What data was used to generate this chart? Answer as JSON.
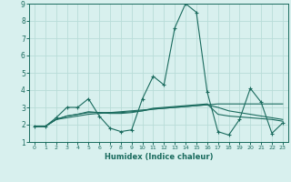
{
  "xlabel": "Humidex (Indice chaleur)",
  "x_values": [
    0,
    1,
    2,
    3,
    4,
    5,
    6,
    7,
    8,
    9,
    10,
    11,
    12,
    13,
    14,
    15,
    16,
    17,
    18,
    19,
    20,
    21,
    22,
    23
  ],
  "series": [
    [
      1.9,
      1.9,
      2.4,
      3.0,
      3.0,
      3.5,
      2.5,
      1.8,
      1.6,
      1.7,
      3.5,
      4.8,
      4.3,
      7.6,
      9.0,
      8.5,
      3.9,
      1.6,
      1.4,
      2.3,
      4.1,
      3.3,
      1.5,
      2.1
    ],
    [
      1.9,
      1.9,
      2.3,
      2.4,
      2.5,
      2.6,
      2.65,
      2.7,
      2.75,
      2.8,
      2.85,
      2.9,
      2.95,
      3.0,
      3.05,
      3.1,
      3.15,
      3.2,
      3.2,
      3.2,
      3.2,
      3.2,
      3.2,
      3.2
    ],
    [
      1.9,
      1.9,
      2.3,
      2.5,
      2.6,
      2.7,
      2.7,
      2.7,
      2.7,
      2.75,
      2.8,
      2.9,
      2.95,
      3.0,
      3.05,
      3.1,
      3.15,
      3.0,
      2.8,
      2.7,
      2.6,
      2.5,
      2.4,
      2.3
    ],
    [
      1.9,
      1.9,
      2.3,
      2.5,
      2.6,
      2.75,
      2.7,
      2.65,
      2.65,
      2.7,
      2.8,
      2.95,
      3.0,
      3.05,
      3.1,
      3.15,
      3.2,
      2.6,
      2.5,
      2.45,
      2.4,
      2.35,
      2.3,
      2.2
    ]
  ],
  "line_color": "#1a6b5e",
  "bg_color": "#d8f0ee",
  "grid_color": "#b8dcd8",
  "ylim": [
    1,
    9
  ],
  "xlim": [
    -0.5,
    23.5
  ],
  "yticks": [
    1,
    2,
    3,
    4,
    5,
    6,
    7,
    8,
    9
  ],
  "xticks": [
    0,
    1,
    2,
    3,
    4,
    5,
    6,
    7,
    8,
    9,
    10,
    11,
    12,
    13,
    14,
    15,
    16,
    17,
    18,
    19,
    20,
    21,
    22,
    23
  ]
}
